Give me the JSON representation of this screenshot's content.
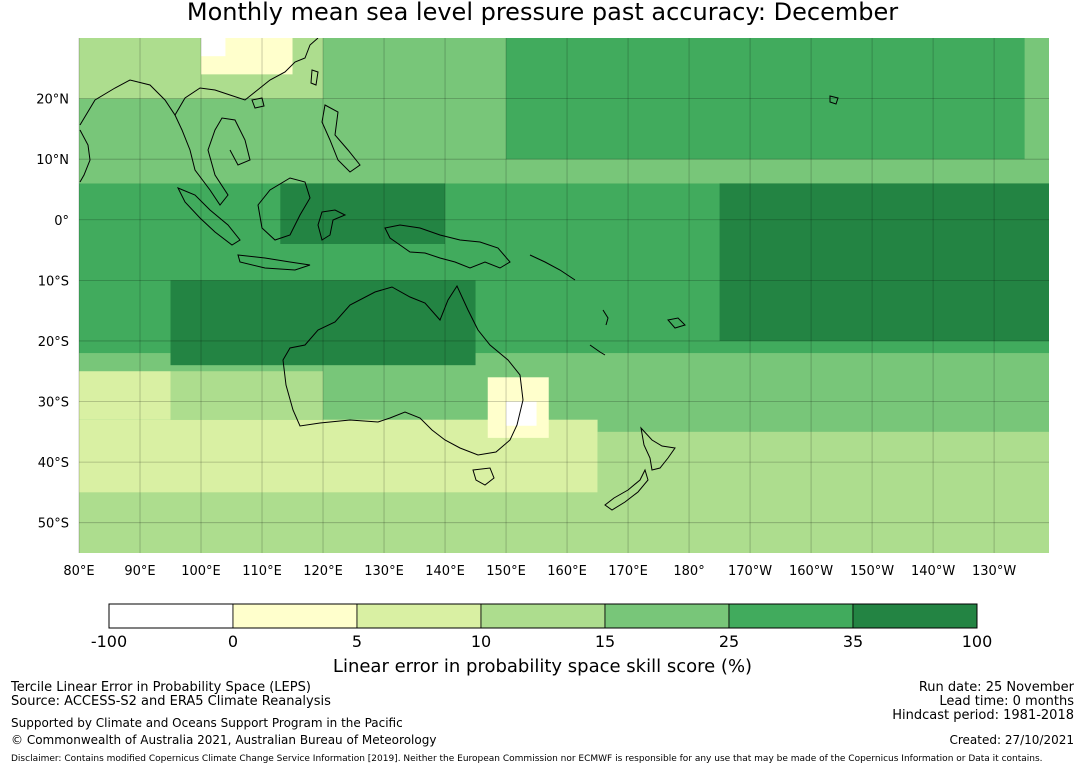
{
  "title": "Monthly mean sea level pressure past accuracy: December",
  "map": {
    "lat_labels": [
      "20°N",
      "10°N",
      "0°",
      "10°S",
      "20°S",
      "30°S",
      "40°S",
      "50°S"
    ],
    "lat_values": [
      20,
      10,
      0,
      -10,
      -20,
      -30,
      -40,
      -50
    ],
    "lon_labels": [
      "80°E",
      "90°E",
      "100°E",
      "110°E",
      "120°E",
      "130°E",
      "140°E",
      "150°E",
      "160°E",
      "170°E",
      "180°",
      "170°W",
      "160°W",
      "150°W",
      "140°W",
      "130°W"
    ],
    "lon_values": [
      80,
      90,
      100,
      110,
      120,
      130,
      140,
      150,
      160,
      170,
      180,
      190,
      200,
      210,
      220,
      230
    ],
    "extent_lon": [
      80,
      239
    ],
    "extent_lat": [
      -55,
      30
    ]
  },
  "colorbar": {
    "ticks": [
      "-100",
      "0",
      "5",
      "10",
      "15",
      "25",
      "35",
      "100"
    ],
    "colors": [
      "#ffffff",
      "#ffffcc",
      "#d9f0a3",
      "#addd8e",
      "#78c679",
      "#41ab5d",
      "#238443"
    ],
    "label": "Linear error in probability space skill score (%)"
  },
  "chart_data": {
    "type": "heatmap",
    "title": "Monthly mean sea level pressure past accuracy: December",
    "colorbar_label": "Linear error in probability space skill score (%)",
    "bins": [
      -100,
      0,
      5,
      10,
      15,
      25,
      35,
      100
    ],
    "xlim": [
      80,
      239
    ],
    "ylim": [
      -55,
      30
    ],
    "regions": [
      {
        "lon": [
          80,
          240
        ],
        "lat": [
          -55,
          30
        ],
        "class": 4
      },
      {
        "lon": [
          80,
          240
        ],
        "lat": [
          -55,
          -45
        ],
        "class": 3
      },
      {
        "lon": [
          80,
          165
        ],
        "lat": [
          -45,
          -33
        ],
        "class": 2
      },
      {
        "lon": [
          95,
          120
        ],
        "lat": [
          -33,
          -25
        ],
        "class": 3
      },
      {
        "lon": [
          80,
          95
        ],
        "lat": [
          -33,
          -25
        ],
        "class": 2
      },
      {
        "lon": [
          147,
          157
        ],
        "lat": [
          -36,
          -26
        ],
        "class": 1
      },
      {
        "lon": [
          150,
          155
        ],
        "lat": [
          -34,
          -30
        ],
        "class": 0
      },
      {
        "lon": [
          165,
          240
        ],
        "lat": [
          -55,
          -35
        ],
        "class": 3
      },
      {
        "lon": [
          80,
          240
        ],
        "lat": [
          -22,
          6
        ],
        "class": 5
      },
      {
        "lon": [
          95,
          145
        ],
        "lat": [
          -24,
          -10
        ],
        "class": 6
      },
      {
        "lon": [
          113,
          140
        ],
        "lat": [
          -4,
          14
        ],
        "class": 6
      },
      {
        "lon": [
          185,
          240
        ],
        "lat": [
          -20,
          10
        ],
        "class": 6
      },
      {
        "lon": [
          80,
          240
        ],
        "lat": [
          6,
          30
        ],
        "class": 4
      },
      {
        "lon": [
          150,
          235
        ],
        "lat": [
          10,
          30
        ],
        "class": 5
      },
      {
        "lon": [
          80,
          120
        ],
        "lat": [
          20,
          30
        ],
        "class": 3
      },
      {
        "lon": [
          100,
          115
        ],
        "lat": [
          24,
          30
        ],
        "class": 1
      },
      {
        "lon": [
          100,
          104
        ],
        "lat": [
          27,
          30
        ],
        "class": 0
      }
    ]
  },
  "footer": {
    "line1": "Tercile Linear Error in Probability Space (LEPS)",
    "line2": "Source: ACCESS-S2 and ERA5 Climate Reanalysis",
    "line3": "Supported by Climate and Oceans Support Program in the Pacific",
    "line4": "© Commonwealth of Australia 2021, Australian Bureau of Meteorology",
    "run_date": "Run date: 25 November",
    "lead_time": "Lead time: 0 months",
    "hindcast": "Hindcast period: 1981-2018",
    "created": "Created: 27/10/2021",
    "disclaimer": "Disclaimer: Contains modified Copernicus Climate Change Service Information [2019]. Neither the European Commission nor ECMWF is responsible for any use that may be made of the Copernicus Information or Data it contains."
  }
}
